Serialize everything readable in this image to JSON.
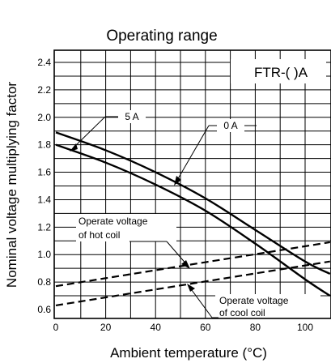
{
  "chart_data": {
    "type": "line",
    "title": "Operating range",
    "xlabel": "Ambient temperature (°C)",
    "ylabel": "Nominal voltage multiplying factor",
    "xlim": [
      0,
      110
    ],
    "ylim": [
      0.6,
      2.5
    ],
    "x_ticks": [
      0,
      20,
      40,
      60,
      80,
      100
    ],
    "y_ticks": [
      0.6,
      0.8,
      1.0,
      1.2,
      1.4,
      1.6,
      1.8,
      2.0,
      2.2,
      2.4
    ],
    "x_tick_labels": [
      "0",
      "20",
      "40",
      "60",
      "80",
      "100"
    ],
    "y_tick_labels": [
      "0.6",
      "0.8",
      "1.0",
      "1.2",
      "1.4",
      "1.6",
      "1.8",
      "2.0",
      "2.2",
      "2.4"
    ],
    "grid": true,
    "model_label": "FTR-( )A",
    "series": [
      {
        "name": "0 A",
        "style": "solid",
        "x": [
          0,
          20,
          40,
          60,
          80,
          100,
          110
        ],
        "y": [
          1.89,
          1.76,
          1.6,
          1.41,
          1.18,
          0.95,
          0.86
        ]
      },
      {
        "name": "5 A",
        "style": "solid",
        "x": [
          0,
          20,
          40,
          60,
          80,
          100,
          110
        ],
        "y": [
          1.8,
          1.67,
          1.51,
          1.32,
          1.08,
          0.82,
          0.7
        ]
      },
      {
        "name": "Operate voltage of hot coil",
        "style": "dashed",
        "x": [
          0,
          110
        ],
        "y": [
          0.77,
          1.09
        ]
      },
      {
        "name": "Operate voltage of cool coil",
        "style": "dashed",
        "x": [
          0,
          110
        ],
        "y": [
          0.63,
          0.95
        ]
      }
    ],
    "annotations": {
      "label_0a": "0 A",
      "label_5a": "5 A",
      "hot_coil_line1": "Operate voltage",
      "hot_coil_line2": "of hot coil",
      "cool_coil_line1": "Operate voltage",
      "cool_coil_line2": "of cool coil"
    }
  }
}
